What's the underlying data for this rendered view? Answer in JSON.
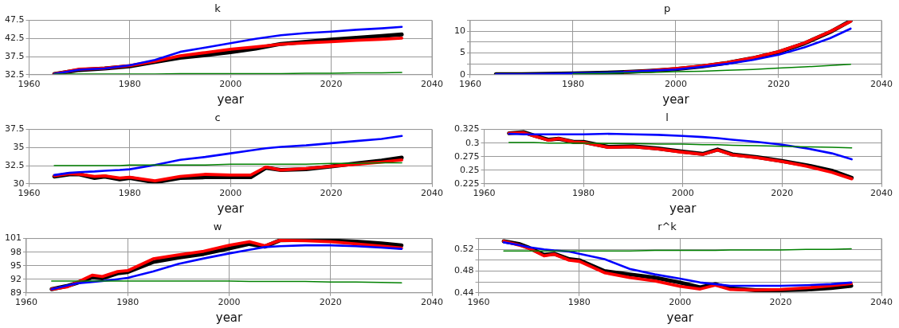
{
  "chart_data": [
    {
      "type": "line",
      "title": "k",
      "xlabel": "year",
      "x": [
        1965,
        1970,
        1975,
        1980,
        1985,
        1990,
        1995,
        2000,
        2005,
        2010,
        2015,
        2020,
        2025,
        2030,
        2034
      ],
      "xlim": [
        1960,
        2040
      ],
      "xticks": [
        1960,
        1980,
        2000,
        2020,
        2040
      ],
      "ylim": [
        32.5,
        47.5
      ],
      "yticks": [
        32.5,
        37.5,
        42.5,
        47.5
      ],
      "grid": true,
      "legend": false,
      "marker": "none",
      "line_style": "solid",
      "series": [
        {
          "color": "#000000",
          "values": [
            32.7,
            33.8,
            34.2,
            34.8,
            36.0,
            37.2,
            37.9,
            38.7,
            39.7,
            41.0,
            41.6,
            42.2,
            42.7,
            43.2,
            43.6
          ]
        },
        {
          "color": "#ff0000",
          "values": [
            32.7,
            34.0,
            34.3,
            35.0,
            36.2,
            37.7,
            38.6,
            39.5,
            40.2,
            40.9,
            41.3,
            41.6,
            42.0,
            42.3,
            42.6
          ]
        },
        {
          "color": "#0000ff",
          "values": [
            32.7,
            33.9,
            34.2,
            35.1,
            36.6,
            38.8,
            40.0,
            41.2,
            42.4,
            43.4,
            44.0,
            44.4,
            44.9,
            45.3,
            45.7
          ]
        },
        {
          "color": "#008000",
          "values": [
            32.7,
            32.7,
            32.7,
            32.7,
            32.7,
            32.8,
            32.8,
            32.8,
            32.8,
            32.8,
            32.9,
            32.9,
            33.0,
            33.0,
            33.1
          ]
        }
      ]
    },
    {
      "type": "line",
      "title": "p",
      "xlabel": "year",
      "x": [
        1965,
        1970,
        1975,
        1980,
        1985,
        1990,
        1995,
        2000,
        2005,
        2010,
        2015,
        2020,
        2025,
        2030,
        2034
      ],
      "xlim": [
        1960,
        2040
      ],
      "xticks": [
        1960,
        1980,
        2000,
        2020,
        2040
      ],
      "ylim": [
        0,
        12.5
      ],
      "yticks": [
        0,
        {
          "value": 2.5,
          "label": null
        },
        5,
        {
          "value": 7.5,
          "label": null
        },
        10,
        {
          "value": 12.5,
          "label": null
        }
      ],
      "grid": true,
      "legend": false,
      "marker": "none",
      "line_style": "solid",
      "series": [
        {
          "color": "#000000",
          "values": [
            0.1,
            0.1,
            0.2,
            0.3,
            0.4,
            0.6,
            0.9,
            1.3,
            1.9,
            2.7,
            3.8,
            5.2,
            7.2,
            9.8,
            12.4
          ]
        },
        {
          "color": "#ff0000",
          "values": [
            null,
            null,
            null,
            null,
            null,
            0.6,
            0.9,
            1.4,
            2.0,
            2.8,
            3.9,
            5.3,
            7.3,
            9.9,
            12.3
          ]
        },
        {
          "color": "#0000ff",
          "values": [
            0.1,
            0.1,
            0.2,
            0.3,
            0.4,
            0.6,
            0.9,
            1.2,
            1.8,
            2.5,
            3.4,
            4.6,
            6.3,
            8.4,
            10.6
          ]
        },
        {
          "color": "#008000",
          "values": [
            null,
            null,
            null,
            0.2,
            0.3,
            0.4,
            0.5,
            0.7,
            0.8,
            1.0,
            1.2,
            1.5,
            1.8,
            2.1,
            2.4
          ]
        }
      ]
    },
    {
      "type": "line",
      "title": "c",
      "xlabel": "year",
      "x": [
        1965,
        1968,
        1970,
        1973,
        1975,
        1978,
        1980,
        1985,
        1990,
        1995,
        2000,
        2004,
        2007,
        2010,
        2015,
        2020,
        2025,
        2030,
        2034
      ],
      "xlim": [
        1960,
        2040
      ],
      "xticks": [
        1960,
        1980,
        2000,
        2020,
        2040
      ],
      "ylim": [
        30,
        37.5
      ],
      "yticks": [
        30,
        32.5,
        35,
        37.5
      ],
      "grid": true,
      "legend": false,
      "marker": "none",
      "line_style": "solid",
      "series": [
        {
          "color": "#000000",
          "values": [
            31.0,
            31.3,
            31.3,
            30.8,
            31.0,
            30.6,
            30.8,
            30.2,
            30.8,
            30.9,
            30.9,
            30.9,
            32.2,
            31.9,
            32.0,
            32.4,
            32.8,
            33.2,
            33.6
          ]
        },
        {
          "color": "#ff0000",
          "values": [
            31.1,
            31.4,
            31.3,
            31.0,
            31.1,
            30.8,
            30.9,
            30.4,
            31.0,
            31.3,
            31.2,
            31.2,
            32.3,
            31.9,
            32.1,
            32.4,
            32.7,
            33.0,
            33.3
          ]
        },
        {
          "color": "#0000ff",
          "values": [
            31.2,
            31.5,
            31.6,
            31.7,
            31.8,
            31.9,
            32.0,
            32.6,
            33.3,
            33.7,
            34.2,
            34.6,
            34.9,
            35.1,
            35.3,
            35.6,
            35.9,
            36.2,
            36.6
          ]
        },
        {
          "color": "#008000",
          "values": [
            32.5,
            32.5,
            32.5,
            32.5,
            32.5,
            32.5,
            32.6,
            32.6,
            32.6,
            32.6,
            32.7,
            32.7,
            32.7,
            32.7,
            32.7,
            32.8,
            32.8,
            32.9,
            32.9
          ]
        }
      ]
    },
    {
      "type": "line",
      "title": "l",
      "xlabel": "year",
      "x": [
        1965,
        1968,
        1970,
        1973,
        1975,
        1978,
        1980,
        1985,
        1990,
        1995,
        2000,
        2004,
        2007,
        2010,
        2015,
        2020,
        2025,
        2030,
        2034
      ],
      "xlim": [
        1960,
        2040
      ],
      "xticks": [
        1960,
        1980,
        2000,
        2020,
        2040
      ],
      "ylim": [
        0.225,
        0.325
      ],
      "yticks": [
        0.225,
        0.25,
        0.275,
        0.3,
        0.325
      ],
      "grid": true,
      "legend": false,
      "marker": "none",
      "line_style": "solid",
      "series": [
        {
          "color": "#000000",
          "values": [
            0.318,
            0.32,
            0.314,
            0.306,
            0.308,
            0.302,
            0.302,
            0.293,
            0.294,
            0.29,
            0.284,
            0.28,
            0.288,
            0.279,
            0.274,
            0.267,
            0.259,
            0.249,
            0.236
          ]
        },
        {
          "color": "#ff0000",
          "values": [
            0.318,
            0.319,
            0.313,
            0.305,
            0.308,
            0.302,
            0.301,
            0.292,
            0.293,
            0.289,
            0.283,
            0.279,
            0.287,
            0.278,
            0.273,
            0.266,
            0.257,
            0.246,
            0.234
          ]
        },
        {
          "color": "#0000ff",
          "values": [
            0.317,
            0.316,
            0.316,
            0.316,
            0.316,
            0.316,
            0.316,
            0.317,
            0.316,
            0.315,
            0.313,
            0.311,
            0.309,
            0.306,
            0.302,
            0.297,
            0.29,
            0.281,
            0.27
          ]
        },
        {
          "color": "#008000",
          "values": [
            0.301,
            0.301,
            0.301,
            0.3,
            0.3,
            0.3,
            0.3,
            0.299,
            0.299,
            0.298,
            0.298,
            0.297,
            0.297,
            0.296,
            0.295,
            0.294,
            0.293,
            0.292,
            0.291
          ]
        }
      ]
    },
    {
      "type": "line",
      "title": "w",
      "xlabel": "year",
      "x": [
        1965,
        1968,
        1970,
        1973,
        1975,
        1978,
        1980,
        1985,
        1990,
        1995,
        2000,
        2004,
        2007,
        2010,
        2015,
        2020,
        2025,
        2030,
        2034
      ],
      "xlim": [
        1960,
        2040
      ],
      "xticks": [
        1960,
        1980,
        2000,
        2020,
        2040
      ],
      "ylim": [
        89,
        101
      ],
      "yticks": [
        89,
        92,
        95,
        98,
        101
      ],
      "grid": true,
      "legend": false,
      "marker": "none",
      "line_style": "solid",
      "series": [
        {
          "color": "#000000",
          "values": [
            89.8,
            90.5,
            91.2,
            92.4,
            92.2,
            93.3,
            93.6,
            95.8,
            96.8,
            97.6,
            98.8,
            99.8,
            99.2,
            100.6,
            100.7,
            100.6,
            100.3,
            99.9,
            99.5
          ]
        },
        {
          "color": "#ff0000",
          "values": [
            89.8,
            90.3,
            91.3,
            92.9,
            92.6,
            93.7,
            93.9,
            96.5,
            97.4,
            98.2,
            99.5,
            100.3,
            99.4,
            100.6,
            100.5,
            100.3,
            99.8,
            99.3,
            98.9
          ]
        },
        {
          "color": "#0000ff",
          "values": [
            89.8,
            90.6,
            91.1,
            91.4,
            91.6,
            92.0,
            92.3,
            93.7,
            95.4,
            96.6,
            97.7,
            98.5,
            99.1,
            99.3,
            99.5,
            99.5,
            99.3,
            99.0,
            98.7
          ]
        },
        {
          "color": "#008000",
          "values": [
            91.6,
            91.6,
            91.6,
            91.6,
            91.6,
            91.6,
            91.6,
            91.6,
            91.6,
            91.6,
            91.6,
            91.5,
            91.5,
            91.5,
            91.5,
            91.4,
            91.4,
            91.3,
            91.2
          ]
        }
      ]
    },
    {
      "type": "line",
      "title": "r^k",
      "xlabel": "year",
      "x": [
        1965,
        1968,
        1970,
        1973,
        1975,
        1978,
        1980,
        1985,
        1990,
        1995,
        2000,
        2004,
        2007,
        2010,
        2015,
        2020,
        2025,
        2030,
        2034
      ],
      "xlim": [
        1960,
        2040
      ],
      "xticks": [
        1960,
        1980,
        2000,
        2020,
        2040
      ],
      "ylim": [
        0.44,
        0.54
      ],
      "yticks": [
        0.44,
        {
          "value": 0.46,
          "label": null
        },
        0.48,
        {
          "value": 0.5,
          "label": null
        },
        0.52,
        {
          "value": 0.54,
          "label": null
        }
      ],
      "grid": true,
      "legend": false,
      "marker": "none",
      "line_style": "solid",
      "series": [
        {
          "color": "#000000",
          "values": [
            0.535,
            0.53,
            0.523,
            0.51,
            0.512,
            0.502,
            0.5,
            0.48,
            0.474,
            0.468,
            0.459,
            0.45,
            0.456,
            0.448,
            0.445,
            0.445,
            0.446,
            0.449,
            0.453
          ]
        },
        {
          "color": "#ff0000",
          "values": [
            0.535,
            0.528,
            0.522,
            0.508,
            0.511,
            0.5,
            0.498,
            0.477,
            0.468,
            0.462,
            0.452,
            0.447,
            0.454,
            0.446,
            0.445,
            0.446,
            0.449,
            0.453,
            0.457
          ]
        },
        {
          "color": "#0000ff",
          "values": [
            0.533,
            0.528,
            0.524,
            0.52,
            0.518,
            0.516,
            0.512,
            0.502,
            0.484,
            0.474,
            0.466,
            0.459,
            0.456,
            0.453,
            0.453,
            0.453,
            0.454,
            0.456,
            0.459
          ]
        },
        {
          "color": "#008000",
          "values": [
            0.517,
            0.517,
            0.517,
            0.517,
            0.517,
            0.517,
            0.517,
            0.517,
            0.517,
            0.518,
            0.518,
            0.518,
            0.518,
            0.519,
            0.519,
            0.519,
            0.52,
            0.52,
            0.521
          ]
        }
      ]
    }
  ]
}
